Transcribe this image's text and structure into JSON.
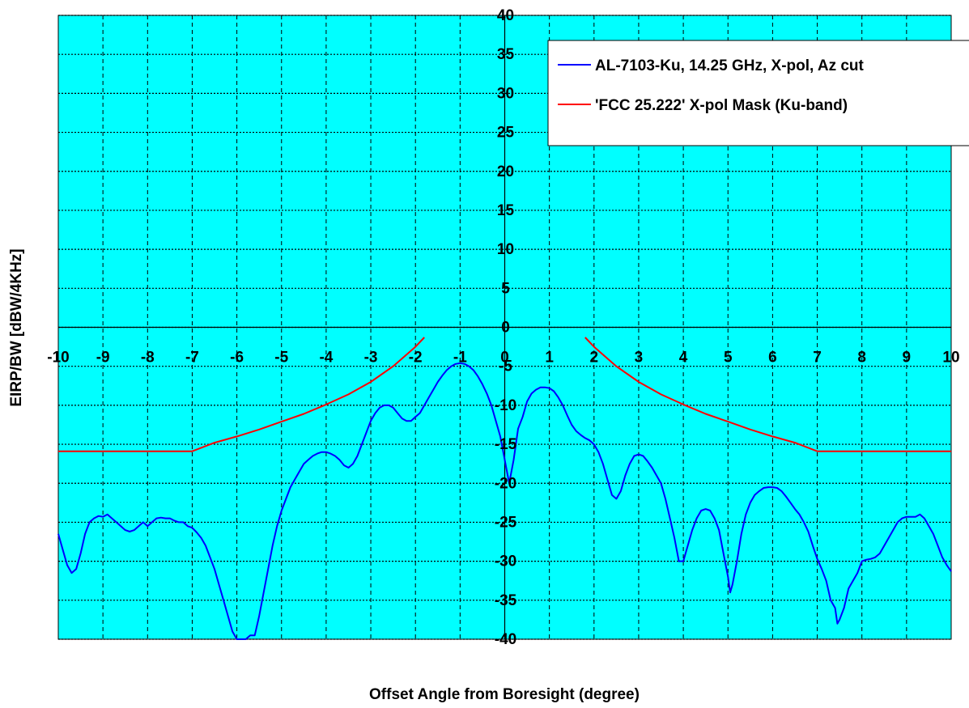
{
  "chart_data": {
    "type": "line",
    "title": "",
    "xlabel": "Offset Angle from Boresight (degree)",
    "ylabel": "EIRP/BW [dBW/4KHz]",
    "xlim": [
      -10,
      10
    ],
    "ylim": [
      -40,
      40
    ],
    "x_ticks": [
      "-10",
      "-9",
      "-8",
      "-7",
      "-6",
      "-5",
      "-4",
      "-3",
      "-2",
      "-1",
      "0",
      "1",
      "2",
      "3",
      "4",
      "5",
      "6",
      "7",
      "8",
      "9",
      "10"
    ],
    "y_ticks": [
      "40",
      "35",
      "30",
      "25",
      "20",
      "15",
      "10",
      "5",
      "0",
      "-5",
      "-10",
      "-15",
      "-20",
      "-25",
      "-30",
      "-35",
      "-40"
    ],
    "grid": true,
    "plot_background": "#00ffff",
    "legend_position": "top-right",
    "series": [
      {
        "name": "AL-7103-Ku, 14.25 GHz, X-pol, Az cut",
        "color": "#0000ff",
        "points": [
          [
            -10,
            -26.5
          ],
          [
            -9.9,
            -28.5
          ],
          [
            -9.8,
            -30.5
          ],
          [
            -9.7,
            -31.5
          ],
          [
            -9.6,
            -31
          ],
          [
            -9.5,
            -29
          ],
          [
            -9.4,
            -26.5
          ],
          [
            -9.3,
            -25
          ],
          [
            -9.2,
            -24.5
          ],
          [
            -9.1,
            -24.2
          ],
          [
            -9.0,
            -24.3
          ],
          [
            -8.9,
            -24
          ],
          [
            -8.8,
            -24.5
          ],
          [
            -8.7,
            -25
          ],
          [
            -8.6,
            -25.5
          ],
          [
            -8.5,
            -26
          ],
          [
            -8.4,
            -26.2
          ],
          [
            -8.3,
            -26
          ],
          [
            -8.2,
            -25.5
          ],
          [
            -8.1,
            -25
          ],
          [
            -8.0,
            -25.5
          ],
          [
            -7.9,
            -25
          ],
          [
            -7.8,
            -24.5
          ],
          [
            -7.7,
            -24.4
          ],
          [
            -7.6,
            -24.5
          ],
          [
            -7.5,
            -24.5
          ],
          [
            -7.4,
            -24.8
          ],
          [
            -7.3,
            -25
          ],
          [
            -7.2,
            -25
          ],
          [
            -7.1,
            -25.5
          ],
          [
            -7.0,
            -25.7
          ],
          [
            -6.9,
            -26.3
          ],
          [
            -6.8,
            -27
          ],
          [
            -6.7,
            -28
          ],
          [
            -6.6,
            -29.5
          ],
          [
            -6.5,
            -31
          ],
          [
            -6.4,
            -33
          ],
          [
            -6.3,
            -35
          ],
          [
            -6.2,
            -37
          ],
          [
            -6.1,
            -39
          ],
          [
            -6.0,
            -40
          ],
          [
            -5.9,
            -40
          ],
          [
            -5.8,
            -40
          ],
          [
            -5.7,
            -39.5
          ],
          [
            -5.6,
            -39.5
          ],
          [
            -5.5,
            -37
          ],
          [
            -5.4,
            -34
          ],
          [
            -5.3,
            -31
          ],
          [
            -5.2,
            -28
          ],
          [
            -5.1,
            -25.5
          ],
          [
            -5.0,
            -23.5
          ],
          [
            -4.9,
            -22
          ],
          [
            -4.8,
            -20.5
          ],
          [
            -4.7,
            -19.5
          ],
          [
            -4.6,
            -18.5
          ],
          [
            -4.5,
            -17.5
          ],
          [
            -4.4,
            -17
          ],
          [
            -4.3,
            -16.5
          ],
          [
            -4.2,
            -16.2
          ],
          [
            -4.1,
            -16
          ],
          [
            -4.0,
            -16
          ],
          [
            -3.9,
            -16.2
          ],
          [
            -3.8,
            -16.5
          ],
          [
            -3.7,
            -17
          ],
          [
            -3.6,
            -17.7
          ],
          [
            -3.5,
            -18
          ],
          [
            -3.4,
            -17.5
          ],
          [
            -3.3,
            -16.5
          ],
          [
            -3.2,
            -15
          ],
          [
            -3.1,
            -13.5
          ],
          [
            -3.0,
            -12
          ],
          [
            -2.9,
            -11
          ],
          [
            -2.8,
            -10.3
          ],
          [
            -2.7,
            -10
          ],
          [
            -2.6,
            -10
          ],
          [
            -2.5,
            -10.3
          ],
          [
            -2.4,
            -11
          ],
          [
            -2.3,
            -11.7
          ],
          [
            -2.2,
            -12
          ],
          [
            -2.1,
            -12
          ],
          [
            -2.0,
            -11.5
          ],
          [
            -1.9,
            -11
          ],
          [
            -1.8,
            -10
          ],
          [
            -1.7,
            -9
          ],
          [
            -1.6,
            -8
          ],
          [
            -1.5,
            -7
          ],
          [
            -1.4,
            -6.2
          ],
          [
            -1.3,
            -5.5
          ],
          [
            -1.2,
            -5
          ],
          [
            -1.1,
            -4.7
          ],
          [
            -1.0,
            -4.6
          ],
          [
            -0.9,
            -4.7
          ],
          [
            -0.8,
            -5
          ],
          [
            -0.7,
            -5.5
          ],
          [
            -0.6,
            -6.3
          ],
          [
            -0.5,
            -7.3
          ],
          [
            -0.4,
            -8.5
          ],
          [
            -0.3,
            -10
          ],
          [
            -0.2,
            -12
          ],
          [
            -0.1,
            -14
          ],
          [
            0.0,
            -17
          ],
          [
            0.1,
            -20
          ],
          [
            0.2,
            -17
          ],
          [
            0.3,
            -13
          ],
          [
            0.4,
            -11.5
          ],
          [
            0.5,
            -9.5
          ],
          [
            0.6,
            -8.5
          ],
          [
            0.7,
            -8
          ],
          [
            0.8,
            -7.7
          ],
          [
            0.9,
            -7.7
          ],
          [
            1.0,
            -7.8
          ],
          [
            1.1,
            -8.2
          ],
          [
            1.2,
            -9
          ],
          [
            1.3,
            -10
          ],
          [
            1.4,
            -11.3
          ],
          [
            1.5,
            -12.5
          ],
          [
            1.6,
            -13.3
          ],
          [
            1.7,
            -13.8
          ],
          [
            1.8,
            -14.2
          ],
          [
            1.9,
            -14.5
          ],
          [
            2.0,
            -15
          ],
          [
            2.1,
            -16
          ],
          [
            2.2,
            -17.5
          ],
          [
            2.3,
            -19.5
          ],
          [
            2.4,
            -21.5
          ],
          [
            2.5,
            -22
          ],
          [
            2.6,
            -21
          ],
          [
            2.7,
            -19
          ],
          [
            2.8,
            -17.5
          ],
          [
            2.9,
            -16.5
          ],
          [
            3.0,
            -16.3
          ],
          [
            3.1,
            -16.5
          ],
          [
            3.2,
            -17.2
          ],
          [
            3.3,
            -18
          ],
          [
            3.4,
            -19
          ],
          [
            3.5,
            -20
          ],
          [
            3.6,
            -22
          ],
          [
            3.7,
            -24.5
          ],
          [
            3.8,
            -27
          ],
          [
            3.9,
            -30
          ],
          [
            4.0,
            -30
          ],
          [
            4.1,
            -28
          ],
          [
            4.2,
            -26
          ],
          [
            4.3,
            -24.5
          ],
          [
            4.4,
            -23.5
          ],
          [
            4.5,
            -23.3
          ],
          [
            4.6,
            -23.5
          ],
          [
            4.7,
            -24.5
          ],
          [
            4.8,
            -26
          ],
          [
            4.9,
            -29
          ],
          [
            5.0,
            -32
          ],
          [
            5.05,
            -34
          ],
          [
            5.1,
            -33
          ],
          [
            5.2,
            -30
          ],
          [
            5.3,
            -26.5
          ],
          [
            5.4,
            -24
          ],
          [
            5.5,
            -22.5
          ],
          [
            5.6,
            -21.5
          ],
          [
            5.7,
            -21
          ],
          [
            5.8,
            -20.6
          ],
          [
            5.9,
            -20.5
          ],
          [
            6.0,
            -20.5
          ],
          [
            6.1,
            -20.6
          ],
          [
            6.2,
            -21
          ],
          [
            6.3,
            -21.7
          ],
          [
            6.4,
            -22.5
          ],
          [
            6.5,
            -23.3
          ],
          [
            6.6,
            -24
          ],
          [
            6.7,
            -25
          ],
          [
            6.8,
            -26.2
          ],
          [
            6.9,
            -28
          ],
          [
            7.0,
            -29.7
          ],
          [
            7.1,
            -31
          ],
          [
            7.2,
            -32.5
          ],
          [
            7.3,
            -35
          ],
          [
            7.4,
            -36
          ],
          [
            7.45,
            -38
          ],
          [
            7.5,
            -37.5
          ],
          [
            7.6,
            -36
          ],
          [
            7.7,
            -33.5
          ],
          [
            7.8,
            -32.5
          ],
          [
            7.9,
            -31.5
          ],
          [
            8.0,
            -30
          ],
          [
            8.1,
            -29.8
          ],
          [
            8.2,
            -29.7
          ],
          [
            8.3,
            -29.5
          ],
          [
            8.4,
            -29
          ],
          [
            8.5,
            -28
          ],
          [
            8.6,
            -27
          ],
          [
            8.7,
            -26
          ],
          [
            8.8,
            -25
          ],
          [
            8.9,
            -24.5
          ],
          [
            9.0,
            -24.3
          ],
          [
            9.1,
            -24.3
          ],
          [
            9.2,
            -24.3
          ],
          [
            9.3,
            -24
          ],
          [
            9.4,
            -24.5
          ],
          [
            9.5,
            -25.5
          ],
          [
            9.6,
            -26.5
          ],
          [
            9.7,
            -28
          ],
          [
            9.8,
            -29.5
          ],
          [
            9.9,
            -30.5
          ],
          [
            10.0,
            -31.3
          ]
        ]
      },
      {
        "name": "'FCC 25.222' X-pol Mask (Ku-band)",
        "color": "#ff0000",
        "segments": [
          [
            [
              -10,
              -15.9
            ],
            [
              -7,
              -15.9
            ],
            [
              -6.5,
              -14.8
            ],
            [
              -6,
              -14.0
            ],
            [
              -5.5,
              -13.1
            ],
            [
              -5,
              -12.1
            ],
            [
              -4.5,
              -11.1
            ],
            [
              -4,
              -9.9
            ],
            [
              -3.5,
              -8.6
            ],
            [
              -3,
              -7.0
            ],
            [
              -2.5,
              -5.0
            ],
            [
              -2,
              -2.5
            ],
            [
              -1.8,
              -1.3
            ]
          ],
          [
            [
              1.8,
              -1.3
            ],
            [
              2,
              -2.5
            ],
            [
              2.5,
              -5.0
            ],
            [
              3,
              -7.0
            ],
            [
              3.5,
              -8.6
            ],
            [
              4,
              -9.9
            ],
            [
              4.5,
              -11.1
            ],
            [
              5,
              -12.1
            ],
            [
              5.5,
              -13.1
            ],
            [
              6,
              -14.0
            ],
            [
              6.5,
              -14.8
            ],
            [
              7,
              -15.9
            ],
            [
              10,
              -15.9
            ]
          ]
        ]
      }
    ]
  }
}
